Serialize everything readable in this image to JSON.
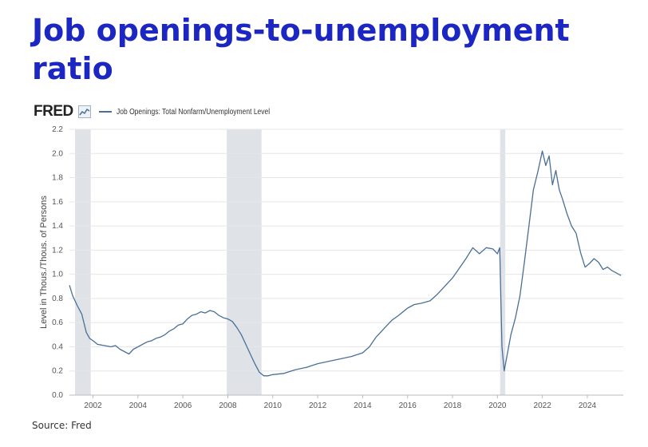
{
  "page": {
    "title": "Job openings-to-unemployment ratio",
    "source": "Source: Fred"
  },
  "fred": {
    "logo_text": "FRED",
    "logo_icon": "fred-trend-icon"
  },
  "colors": {
    "title": "#1c26c2",
    "line": "#4a6f96",
    "recession": "#dfe3e8",
    "grid": "#e6e6e6"
  },
  "chart_data": {
    "type": "line",
    "title": "",
    "xlabel": "",
    "ylabel": "Level in Thous./Thous. of Persons",
    "ylim": [
      0,
      2.2
    ],
    "xlim": [
      2000.95,
      2025.6
    ],
    "grid": true,
    "legend": "top-left",
    "x_ticks": [
      2002,
      2004,
      2006,
      2008,
      2010,
      2012,
      2014,
      2016,
      2018,
      2020,
      2022,
      2024
    ],
    "y_ticks": [
      0.0,
      0.2,
      0.4,
      0.6,
      0.8,
      1.0,
      1.2,
      1.4,
      1.6,
      1.8,
      2.0,
      2.2
    ],
    "y_tick_labels": [
      "0.0",
      "0.2",
      "0.4",
      "0.6",
      "0.8",
      "1.0",
      "1.2",
      "1.4",
      "1.6",
      "1.8",
      "2.0",
      "2.2"
    ],
    "recessions": [
      [
        2001.2,
        2001.9
      ],
      [
        2007.95,
        2009.5
      ],
      [
        2020.12,
        2020.35
      ]
    ],
    "series": [
      {
        "name": "Job Openings: Total Nonfarm/Unemployment Level",
        "x": [
          2000.95,
          2001.1,
          2001.3,
          2001.5,
          2001.7,
          2001.85,
          2002.0,
          2002.2,
          2002.5,
          2002.8,
          2003.0,
          2003.2,
          2003.4,
          2003.6,
          2003.8,
          2004.0,
          2004.2,
          2004.4,
          2004.6,
          2004.8,
          2005.0,
          2005.2,
          2005.4,
          2005.6,
          2005.8,
          2006.0,
          2006.2,
          2006.4,
          2006.6,
          2006.8,
          2007.0,
          2007.2,
          2007.4,
          2007.6,
          2007.8,
          2008.0,
          2008.2,
          2008.4,
          2008.6,
          2008.8,
          2009.0,
          2009.2,
          2009.4,
          2009.6,
          2009.8,
          2010.0,
          2010.5,
          2011.0,
          2011.5,
          2012.0,
          2012.5,
          2013.0,
          2013.5,
          2014.0,
          2014.3,
          2014.6,
          2015.0,
          2015.3,
          2015.6,
          2016.0,
          2016.3,
          2016.6,
          2017.0,
          2017.3,
          2017.6,
          2018.0,
          2018.3,
          2018.6,
          2018.9,
          2019.2,
          2019.5,
          2019.8,
          2020.0,
          2020.1,
          2020.2,
          2020.3,
          2020.45,
          2020.6,
          2020.8,
          2021.0,
          2021.2,
          2021.4,
          2021.6,
          2021.8,
          2022.0,
          2022.15,
          2022.3,
          2022.45,
          2022.6,
          2022.75,
          2022.9,
          2023.1,
          2023.3,
          2023.5,
          2023.7,
          2023.9,
          2024.1,
          2024.3,
          2024.5,
          2024.7,
          2024.9,
          2025.1,
          2025.3,
          2025.5
        ],
        "values": [
          0.91,
          0.82,
          0.74,
          0.67,
          0.52,
          0.47,
          0.45,
          0.42,
          0.41,
          0.4,
          0.41,
          0.38,
          0.36,
          0.34,
          0.38,
          0.4,
          0.42,
          0.44,
          0.45,
          0.47,
          0.48,
          0.5,
          0.53,
          0.55,
          0.58,
          0.59,
          0.63,
          0.66,
          0.67,
          0.69,
          0.68,
          0.7,
          0.69,
          0.66,
          0.64,
          0.63,
          0.61,
          0.56,
          0.5,
          0.42,
          0.34,
          0.26,
          0.19,
          0.16,
          0.16,
          0.17,
          0.18,
          0.21,
          0.23,
          0.26,
          0.28,
          0.3,
          0.32,
          0.35,
          0.4,
          0.48,
          0.56,
          0.62,
          0.66,
          0.72,
          0.75,
          0.76,
          0.78,
          0.83,
          0.89,
          0.97,
          1.05,
          1.13,
          1.22,
          1.17,
          1.22,
          1.21,
          1.17,
          1.22,
          0.4,
          0.2,
          0.35,
          0.5,
          0.64,
          0.82,
          1.1,
          1.4,
          1.7,
          1.85,
          2.02,
          1.9,
          1.98,
          1.74,
          1.86,
          1.7,
          1.62,
          1.5,
          1.4,
          1.34,
          1.18,
          1.06,
          1.09,
          1.13,
          1.1,
          1.04,
          1.06,
          1.03,
          1.01,
          0.99
        ]
      }
    ]
  }
}
